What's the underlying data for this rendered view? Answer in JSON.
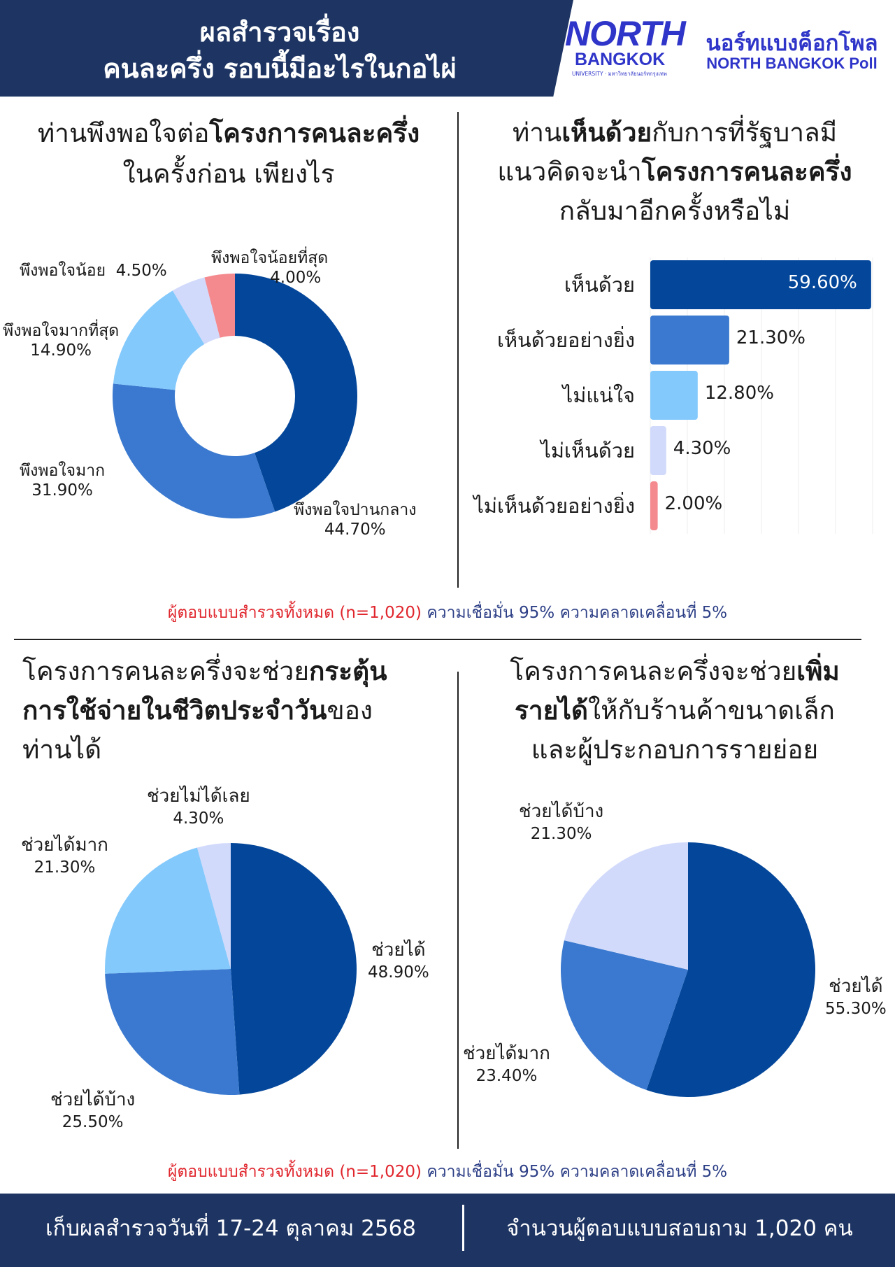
{
  "header": {
    "title_line1": "ผลสำรวจเรื่อง",
    "title_line2": "คนละครึ่ง รอบนี้มีอะไรในกอไผ่",
    "logo_north": "NORTH",
    "logo_bangkok": "BANGKOK",
    "logo_sub": "UNIVERSITY · มหาวิทยาลัยนอร์ทกรุงเทพ",
    "poll_name_th": "นอร์ทแบงค็อกโพล",
    "poll_name_en": "NORTH BANGKOK Poll"
  },
  "colors": {
    "navy": "#1e3563",
    "dark_blue": "#03469a",
    "mid_blue": "#3a79cf",
    "light_blue": "#84c9fc",
    "lavender": "#d1dafb",
    "pink": "#f4898e",
    "red_note": "#e0262d",
    "blue_note": "#2d3f86"
  },
  "q1": {
    "title_plain1": "ท่านพึงพอใจต่อ",
    "title_bold1": "โครงการคนละครึ่ง",
    "title_line2": "ในครั้งก่อน เพียงไร"
  },
  "q2": {
    "title_plain1": "ท่าน",
    "title_bold1": "เห็นด้วย",
    "title_plain2": "กับการที่รัฐบาลมี",
    "title_plain3": "แนวคิดจะนำ",
    "title_bold2": "โครงการคนละครึ่ง",
    "title_line3": "กลับมาอีกครั้งหรือไม่"
  },
  "q3": {
    "title_plain1": "โครงการคนละครึ่งจะช่วย",
    "title_bold1": "กระตุ้น",
    "title_bold2": "การใช้จ่ายในชีวิตประจำวัน",
    "title_plain2": "ของ",
    "title_line3": "ท่านได้"
  },
  "q4": {
    "title_plain1": "โครงการคนละครึ่งจะช่วย",
    "title_bold1": "เพิ่ม",
    "title_bold2": "รายได้",
    "title_plain2": "ให้กับร้านค้าขนาดเล็ก",
    "title_line3": "และผู้ประกอบการรายย่อย"
  },
  "notes": {
    "sample": "ผู้ตอบแบบสำรวจทั้งหมด (n=1,020)",
    "confidence": "ความเชื่อมั่น 95% ความคลาดเคลื่อนที่ 5%"
  },
  "footer": {
    "date": "เก็บผลสำรวจวันที่ 17-24 ตุลาคม 2568",
    "respondents": "จำนวนผู้ตอบแบบสอบถาม 1,020 คน"
  },
  "chart_data": [
    {
      "type": "pie",
      "subtype": "donut",
      "labels": [
        "พึงพอใจปานกลาง",
        "พึงพอใจมาก",
        "พึงพอใจมากที่สุด",
        "พึงพอใจน้อย",
        "พึงพอใจน้อยที่สุด"
      ],
      "values": [
        44.7,
        31.9,
        14.9,
        4.5,
        4.0
      ],
      "value_labels": [
        "44.70%",
        "31.90%",
        "14.90%",
        "4.50%",
        "4.00%"
      ],
      "colors": [
        "#03469a",
        "#3a79cf",
        "#84c9fc",
        "#d1dafb",
        "#f4898e"
      ]
    },
    {
      "type": "bar",
      "orientation": "horizontal",
      "categories": [
        "เห็นด้วย",
        "เห็นด้วยอย่างยิ่ง",
        "ไม่แน่ใจ",
        "ไม่เห็นด้วย",
        "ไม่เห็นด้วยอย่างยิ่ง"
      ],
      "values": [
        59.6,
        21.3,
        12.8,
        4.3,
        2.0
      ],
      "value_labels": [
        "59.60%",
        "21.30%",
        "12.80%",
        "4.30%",
        "2.00%"
      ],
      "colors": [
        "#03469a",
        "#3a79cf",
        "#84c9fc",
        "#d1dafb",
        "#f4898e"
      ],
      "xlim": [
        0,
        60
      ],
      "grid": true
    },
    {
      "type": "pie",
      "labels": [
        "ช่วยได้",
        "ช่วยได้บ้าง",
        "ช่วยได้มาก",
        "ช่วยไม่ได้เลย"
      ],
      "values": [
        48.9,
        25.5,
        21.3,
        4.3
      ],
      "value_labels": [
        "48.90%",
        "25.50%",
        "21.30%",
        "4.30%"
      ],
      "colors": [
        "#03469a",
        "#3a79cf",
        "#84c9fc",
        "#d1dafb"
      ]
    },
    {
      "type": "pie",
      "labels": [
        "ช่วยได้",
        "ช่วยได้มาก",
        "ช่วยได้บ้าง"
      ],
      "values": [
        55.3,
        23.4,
        21.3
      ],
      "value_labels": [
        "55.30%",
        "23.40%",
        "21.30%"
      ],
      "colors": [
        "#03469a",
        "#3a79cf",
        "#d1dafb"
      ]
    }
  ]
}
